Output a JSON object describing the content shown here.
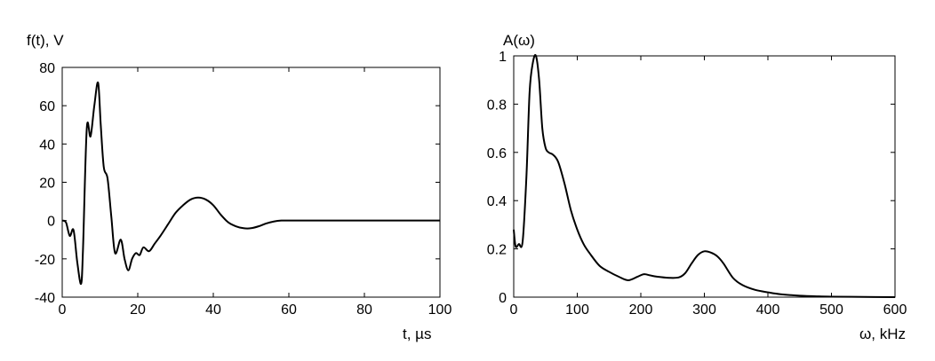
{
  "chart_data": [
    {
      "type": "line",
      "title": "",
      "ylabel": "f(t), V",
      "xlabel": "t, µs",
      "xlim": [
        0,
        100
      ],
      "ylim": [
        -40,
        80
      ],
      "xticks": [
        "0",
        "20",
        "40",
        "60",
        "80",
        "100"
      ],
      "yticks": [
        "-40",
        "-20",
        "0",
        "20",
        "40",
        "60",
        "80"
      ],
      "grid": false,
      "line_color": "#000000",
      "series": [
        {
          "x": [
            0,
            1,
            2,
            3,
            4,
            5,
            5.5,
            6.5,
            7.5,
            8.5,
            9.5,
            10.2,
            11,
            12,
            13,
            14,
            15.5,
            16.5,
            17.5,
            18.5,
            19.5,
            20.5,
            21.5,
            23,
            24.5,
            26,
            28,
            30,
            32,
            34,
            36,
            38,
            40,
            42,
            44,
            46,
            48,
            50,
            52,
            54,
            56,
            58,
            60,
            62,
            64,
            70,
            80,
            90,
            100
          ],
          "y": [
            0,
            -1,
            -8,
            -5,
            -22,
            -33,
            -15,
            48,
            44,
            60,
            72,
            50,
            28,
            22,
            2,
            -17,
            -10,
            -20,
            -26,
            -20,
            -17,
            -18,
            -14,
            -16,
            -12,
            -8,
            -2,
            4,
            8,
            11,
            12,
            11,
            8,
            3,
            -1,
            -3,
            -4,
            -4,
            -3,
            -1.5,
            -0.5,
            0,
            0,
            0,
            0,
            0,
            0,
            0,
            0
          ]
        }
      ]
    },
    {
      "type": "line",
      "title": "",
      "ylabel": "A(ω)",
      "xlabel": "ω, kHz",
      "xlim": [
        0,
        600
      ],
      "ylim": [
        0,
        1
      ],
      "xticks": [
        "0",
        "100",
        "200",
        "300",
        "400",
        "500",
        "600"
      ],
      "yticks": [
        "0",
        "0.2",
        "0.4",
        "0.6",
        "0.8",
        "1"
      ],
      "grid": false,
      "line_color": "#000000",
      "series": [
        {
          "x": [
            0,
            3,
            8,
            14,
            20,
            25,
            30,
            35,
            40,
            45,
            50,
            55,
            62,
            70,
            80,
            90,
            100,
            110,
            120,
            135,
            150,
            165,
            180,
            195,
            205,
            215,
            225,
            245,
            260,
            270,
            280,
            290,
            300,
            310,
            320,
            330,
            345,
            360,
            380,
            400,
            420,
            450,
            480,
            500,
            550,
            600
          ],
          "y": [
            0.28,
            0.21,
            0.22,
            0.23,
            0.5,
            0.85,
            0.97,
            1.0,
            0.9,
            0.7,
            0.62,
            0.6,
            0.59,
            0.56,
            0.47,
            0.36,
            0.28,
            0.22,
            0.18,
            0.13,
            0.105,
            0.085,
            0.07,
            0.085,
            0.095,
            0.09,
            0.085,
            0.08,
            0.082,
            0.1,
            0.14,
            0.175,
            0.19,
            0.185,
            0.17,
            0.14,
            0.08,
            0.05,
            0.03,
            0.02,
            0.012,
            0.006,
            0.003,
            0.002,
            0.001,
            0
          ]
        }
      ]
    }
  ]
}
